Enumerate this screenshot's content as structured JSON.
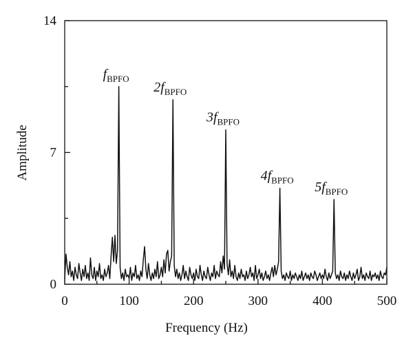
{
  "chart_data": {
    "type": "line",
    "xlabel": "Frequency (Hz)",
    "ylabel": "Amplitude",
    "xlim": [
      0,
      500
    ],
    "xticks": [
      0,
      100,
      200,
      300,
      400,
      500
    ],
    "xminorticks": [
      50,
      150,
      250,
      350,
      450
    ],
    "ylim": [
      0,
      14
    ],
    "yticks": [
      0,
      7,
      14
    ],
    "yminorticks": [
      3.5,
      10.5
    ],
    "grid": false,
    "annotations": [
      {
        "text": "f",
        "sub": "BPFO"
      },
      {
        "text": "2f",
        "sub": "BPFO"
      },
      {
        "text": "3f",
        "sub": "BPFO"
      },
      {
        "text": "4f",
        "sub": "BPFO"
      },
      {
        "text": "5f",
        "sub": "BPFO"
      }
    ],
    "x": [
      0,
      2,
      4,
      6,
      8,
      10,
      12,
      14,
      16,
      18,
      20,
      22,
      24,
      26,
      28,
      30,
      32,
      34,
      36,
      38,
      40,
      42,
      44,
      46,
      48,
      50,
      52,
      54,
      56,
      58,
      60,
      62,
      64,
      66,
      68,
      70,
      72,
      74,
      76,
      78,
      80,
      82,
      84,
      86,
      88,
      90,
      92,
      94,
      96,
      98,
      100,
      102,
      104,
      106,
      108,
      110,
      112,
      114,
      116,
      118,
      120,
      122,
      124,
      126,
      128,
      130,
      132,
      134,
      136,
      138,
      140,
      142,
      144,
      146,
      148,
      150,
      152,
      154,
      156,
      158,
      160,
      162,
      164,
      166,
      168,
      170,
      172,
      174,
      176,
      178,
      180,
      182,
      184,
      186,
      188,
      190,
      192,
      194,
      196,
      198,
      200,
      202,
      204,
      206,
      208,
      210,
      212,
      214,
      216,
      218,
      220,
      222,
      224,
      226,
      228,
      230,
      232,
      234,
      236,
      238,
      240,
      242,
      244,
      246,
      248,
      250,
      252,
      254,
      256,
      258,
      260,
      262,
      264,
      266,
      268,
      270,
      272,
      274,
      276,
      278,
      280,
      282,
      284,
      286,
      288,
      290,
      292,
      294,
      296,
      298,
      300,
      302,
      304,
      306,
      308,
      310,
      312,
      314,
      316,
      318,
      320,
      322,
      324,
      326,
      328,
      330,
      332,
      334,
      336,
      338,
      340,
      342,
      344,
      346,
      348,
      350,
      352,
      354,
      356,
      358,
      360,
      362,
      364,
      366,
      368,
      370,
      372,
      374,
      376,
      378,
      380,
      382,
      384,
      386,
      388,
      390,
      392,
      394,
      396,
      398,
      400,
      402,
      404,
      406,
      408,
      410,
      412,
      414,
      416,
      418,
      420,
      422,
      424,
      426,
      428,
      430,
      432,
      434,
      436,
      438,
      440,
      442,
      444,
      446,
      448,
      450,
      452,
      454,
      456,
      458,
      460,
      462,
      464,
      466,
      468,
      470,
      472,
      474,
      476,
      478,
      480,
      482,
      484,
      486,
      488,
      490,
      492,
      494,
      496,
      498,
      500
    ],
    "series": [
      {
        "color": "#111111",
        "values": [
          0.3,
          1.6,
          0.9,
          0.5,
          1.2,
          0.4,
          0.7,
          0.2,
          0.9,
          0.5,
          0.3,
          1.1,
          0.6,
          0.2,
          0.8,
          0.4,
          1.0,
          0.3,
          0.6,
          0.2,
          1.4,
          0.5,
          0.3,
          0.9,
          0.2,
          0.7,
          0.4,
          1.1,
          0.3,
          0.5,
          0.2,
          0.8,
          0.4,
          0.6,
          1.0,
          0.3,
          1.5,
          2.5,
          1.2,
          2.6,
          1.1,
          1.8,
          10.5,
          0.9,
          0.3,
          0.6,
          0.2,
          0.8,
          0.4,
          0.5,
          0.3,
          0.9,
          0.2,
          0.6,
          0.4,
          1.0,
          0.3,
          0.5,
          0.2,
          0.7,
          0.4,
          1.3,
          2.0,
          0.8,
          0.3,
          1.1,
          0.5,
          0.2,
          0.6,
          0.3,
          0.8,
          0.4,
          1.2,
          0.3,
          0.5,
          0.9,
          0.4,
          1.3,
          0.6,
          1.6,
          1.8,
          0.7,
          1.2,
          1.5,
          9.8,
          1.0,
          0.4,
          0.8,
          0.3,
          0.6,
          0.2,
          0.5,
          1.0,
          0.3,
          0.7,
          0.4,
          0.2,
          0.9,
          0.5,
          0.3,
          0.6,
          0.2,
          0.8,
          0.4,
          0.3,
          1.0,
          0.5,
          0.2,
          0.7,
          0.4,
          0.3,
          0.9,
          0.5,
          0.2,
          0.6,
          0.4,
          1.0,
          0.3,
          0.7,
          0.5,
          0.4,
          1.2,
          0.6,
          1.5,
          0.8,
          8.2,
          1.1,
          0.5,
          1.3,
          0.4,
          0.7,
          0.3,
          1.0,
          0.4,
          0.2,
          0.6,
          0.3,
          0.8,
          0.4,
          0.5,
          0.2,
          0.7,
          0.3,
          0.5,
          0.9,
          0.4,
          0.6,
          0.2,
          1.0,
          0.3,
          0.5,
          0.8,
          0.3,
          0.6,
          0.2,
          0.4,
          0.7,
          0.3,
          0.5,
          0.2,
          0.6,
          0.9,
          0.4,
          1.0,
          0.5,
          0.8,
          1.2,
          5.1,
          0.7,
          0.3,
          0.5,
          0.2,
          0.6,
          0.4,
          0.3,
          0.7,
          0.2,
          0.5,
          0.3,
          0.6,
          0.4,
          0.2,
          0.5,
          0.3,
          0.7,
          0.2,
          0.4,
          0.6,
          0.3,
          0.5,
          0.2,
          0.6,
          0.4,
          0.3,
          0.7,
          0.5,
          0.2,
          0.4,
          0.6,
          0.3,
          0.5,
          0.3,
          0.8,
          0.4,
          0.2,
          0.6,
          0.3,
          0.5,
          0.7,
          4.5,
          0.6,
          0.3,
          0.5,
          0.2,
          0.7,
          0.4,
          0.3,
          0.6,
          0.2,
          0.5,
          0.3,
          0.7,
          0.4,
          0.2,
          0.6,
          0.3,
          0.5,
          0.8,
          0.2,
          0.4,
          0.9,
          0.3,
          0.5,
          0.2,
          0.6,
          0.4,
          0.3,
          0.7,
          0.2,
          0.5,
          0.4,
          0.6,
          0.3,
          0.5,
          0.2,
          0.7,
          0.4,
          0.3,
          0.6,
          0.5,
          0.9
        ]
      }
    ]
  }
}
